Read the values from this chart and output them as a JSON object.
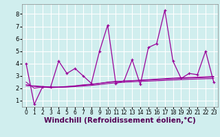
{
  "background_color": "#d0eeee",
  "grid_color": "#ffffff",
  "line_color": "#990099",
  "xlabel": "Windchill (Refroidissement éolien,°C)",
  "xlim": [
    -0.5,
    23.5
  ],
  "ylim": [
    0.5,
    8.8
  ],
  "xticks": [
    0,
    1,
    2,
    3,
    4,
    5,
    6,
    7,
    8,
    9,
    10,
    11,
    12,
    13,
    14,
    15,
    16,
    17,
    18,
    19,
    20,
    21,
    22,
    23
  ],
  "yticks": [
    1,
    2,
    3,
    4,
    5,
    6,
    7,
    8
  ],
  "series1_x": [
    0,
    1,
    2,
    3,
    4,
    5,
    6,
    7,
    8,
    9,
    10,
    11,
    12,
    13,
    14,
    15,
    16,
    17,
    18,
    19,
    20,
    21,
    22,
    23
  ],
  "series1_y": [
    4.0,
    0.7,
    2.1,
    2.1,
    4.2,
    3.2,
    3.6,
    3.0,
    2.4,
    5.0,
    7.1,
    2.4,
    2.6,
    4.3,
    2.3,
    5.3,
    5.6,
    8.3,
    4.2,
    2.8,
    3.2,
    3.1,
    5.0,
    2.5
  ],
  "series2_x": [
    0,
    1,
    2,
    3,
    4,
    5,
    6,
    7,
    8,
    9,
    10,
    11,
    12,
    13,
    14,
    15,
    16,
    17,
    18,
    19,
    20,
    21,
    22,
    23
  ],
  "series2_y": [
    2.2,
    2.2,
    2.15,
    2.1,
    2.1,
    2.15,
    2.2,
    2.28,
    2.33,
    2.4,
    2.48,
    2.53,
    2.58,
    2.62,
    2.66,
    2.7,
    2.74,
    2.78,
    2.82,
    2.85,
    2.88,
    2.9,
    2.93,
    2.96
  ],
  "series3_x": [
    0,
    1,
    2,
    3,
    4,
    5,
    6,
    7,
    8,
    9,
    10,
    11,
    12,
    13,
    14,
    15,
    16,
    17,
    18,
    19,
    20,
    21,
    22,
    23
  ],
  "series3_y": [
    2.3,
    2.15,
    2.1,
    2.05,
    2.08,
    2.1,
    2.14,
    2.18,
    2.23,
    2.3,
    2.38,
    2.44,
    2.49,
    2.52,
    2.56,
    2.58,
    2.61,
    2.64,
    2.67,
    2.7,
    2.73,
    2.75,
    2.77,
    2.79
  ],
  "series4_x": [
    0,
    1,
    2,
    3,
    4,
    5,
    6,
    7,
    8,
    9,
    10,
    11,
    12,
    13,
    14,
    15,
    16,
    17,
    18,
    19,
    20,
    21,
    22,
    23
  ],
  "series4_y": [
    2.5,
    2.0,
    2.1,
    2.1,
    2.1,
    2.12,
    2.18,
    2.25,
    2.3,
    2.4,
    2.5,
    2.56,
    2.58,
    2.61,
    2.64,
    2.67,
    2.7,
    2.73,
    2.77,
    2.8,
    2.83,
    2.85,
    2.87,
    2.9
  ],
  "tick_fontsize": 6,
  "xlabel_fontsize": 7.5
}
